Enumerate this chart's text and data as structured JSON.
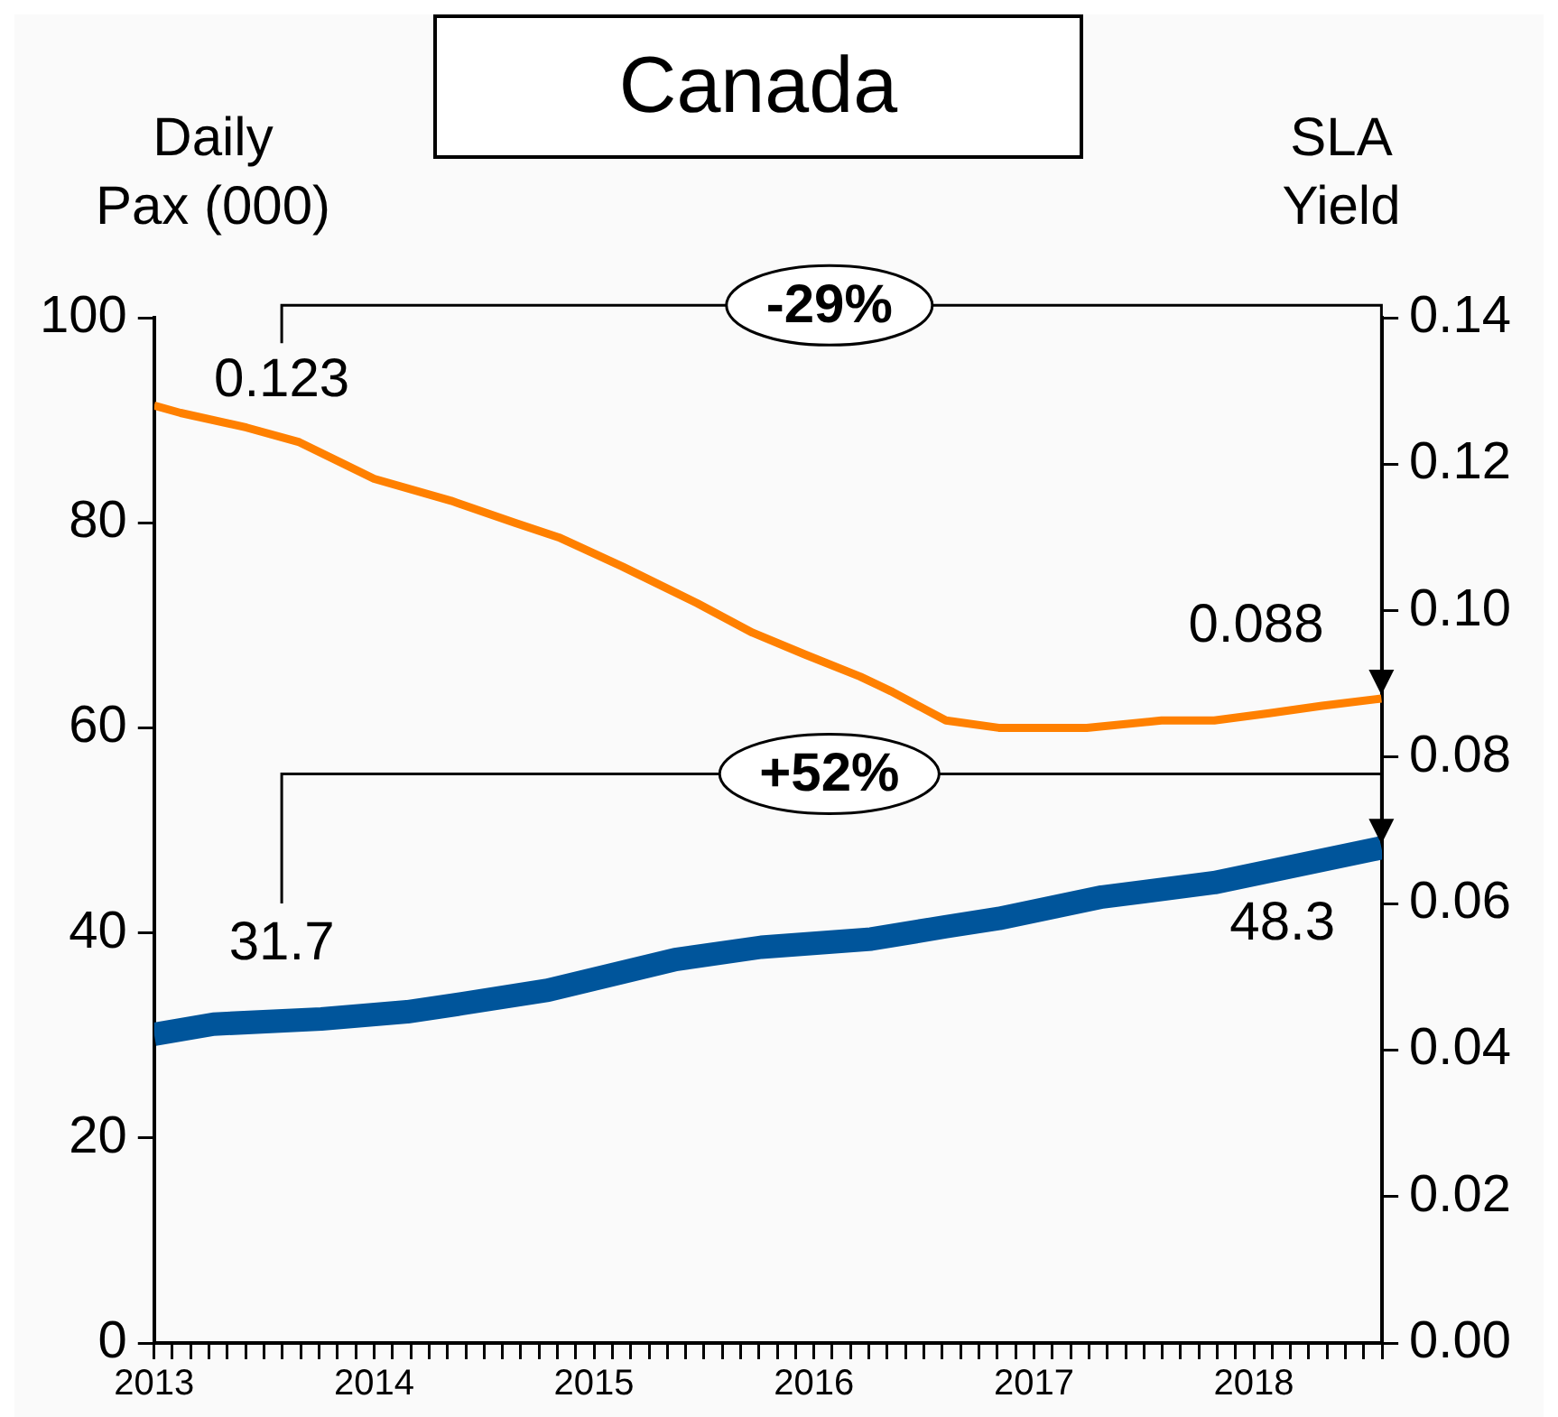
{
  "chart_data": {
    "type": "line",
    "title": "Canada",
    "ylabel": "Daily Pax (000)",
    "y2label": "SLA Yield",
    "xlim": [
      2013,
      2018.583
    ],
    "xticks": [
      2013,
      {
        "value": 2013.083,
        "label": null
      },
      {
        "value": 2013.167,
        "label": null
      },
      {
        "value": 2013.25,
        "label": null
      },
      {
        "value": 2013.333,
        "label": null
      },
      {
        "value": 2013.417,
        "label": null
      },
      {
        "value": 2013.5,
        "label": null
      },
      {
        "value": 2013.583,
        "label": null
      },
      {
        "value": 2013.667,
        "label": null
      },
      {
        "value": 2013.75,
        "label": null
      },
      {
        "value": 2013.833,
        "label": null
      },
      {
        "value": 2013.917,
        "label": null
      },
      2014,
      {
        "value": 2014.083,
        "label": null
      },
      {
        "value": 2014.167,
        "label": null
      },
      {
        "value": 2014.25,
        "label": null
      },
      {
        "value": 2014.333,
        "label": null
      },
      {
        "value": 2014.417,
        "label": null
      },
      {
        "value": 2014.5,
        "label": null
      },
      {
        "value": 2014.583,
        "label": null
      },
      {
        "value": 2014.667,
        "label": null
      },
      {
        "value": 2014.75,
        "label": null
      },
      {
        "value": 2014.833,
        "label": null
      },
      {
        "value": 2014.917,
        "label": null
      },
      2015,
      {
        "value": 2015.083,
        "label": null
      },
      {
        "value": 2015.167,
        "label": null
      },
      {
        "value": 2015.25,
        "label": null
      },
      {
        "value": 2015.333,
        "label": null
      },
      {
        "value": 2015.417,
        "label": null
      },
      {
        "value": 2015.5,
        "label": null
      },
      {
        "value": 2015.583,
        "label": null
      },
      {
        "value": 2015.667,
        "label": null
      },
      {
        "value": 2015.75,
        "label": null
      },
      {
        "value": 2015.833,
        "label": null
      },
      {
        "value": 2015.917,
        "label": null
      },
      2016,
      {
        "value": 2016.083,
        "label": null
      },
      {
        "value": 2016.167,
        "label": null
      },
      {
        "value": 2016.25,
        "label": null
      },
      {
        "value": 2016.333,
        "label": null
      },
      {
        "value": 2016.417,
        "label": null
      },
      {
        "value": 2016.5,
        "label": null
      },
      {
        "value": 2016.583,
        "label": null
      },
      {
        "value": 2016.667,
        "label": null
      },
      {
        "value": 2016.75,
        "label": null
      },
      {
        "value": 2016.833,
        "label": null
      },
      {
        "value": 2016.917,
        "label": null
      },
      2017,
      {
        "value": 2017.083,
        "label": null
      },
      {
        "value": 2017.167,
        "label": null
      },
      {
        "value": 2017.25,
        "label": null
      },
      {
        "value": 2017.333,
        "label": null
      },
      {
        "value": 2017.417,
        "label": null
      },
      {
        "value": 2017.5,
        "label": null
      },
      {
        "value": 2017.583,
        "label": null
      },
      {
        "value": 2017.667,
        "label": null
      },
      {
        "value": 2017.75,
        "label": null
      },
      {
        "value": 2017.833,
        "label": null
      },
      {
        "value": 2017.917,
        "label": null
      },
      2018,
      {
        "value": 2018.083,
        "label": null
      },
      {
        "value": 2018.167,
        "label": null
      },
      {
        "value": 2018.25,
        "label": null
      },
      {
        "value": 2018.333,
        "label": null
      },
      {
        "value": 2018.417,
        "label": null
      },
      {
        "value": 2018.5,
        "label": null
      },
      {
        "value": 2018.583,
        "label": null
      }
    ],
    "ylim": [
      0,
      100
    ],
    "yticks": [
      0,
      20,
      40,
      60,
      80,
      100
    ],
    "y2lim": [
      0,
      0.14
    ],
    "y2ticks": [
      {
        "value": 0,
        "label": "0.00"
      },
      {
        "value": 0.02,
        "label": "0.02"
      },
      {
        "value": 0.04,
        "label": "0.04"
      },
      {
        "value": 0.06,
        "label": "0.06"
      },
      {
        "value": 0.08,
        "label": "0.08"
      },
      {
        "value": 0.1,
        "label": "0.10"
      },
      {
        "value": 0.12,
        "label": "0.12"
      },
      {
        "value": 0.14,
        "label": "0.14"
      }
    ],
    "grid": false,
    "legend": false,
    "series": [
      {
        "color": "#00559b",
        "x": [
          2013,
          2013.27,
          2013.76,
          2014.15,
          2014.4,
          2014.79,
          2015.37,
          2015.76,
          2016.26,
          2016.6,
          2016.84,
          2017.31,
          2017.82,
          2018.58
        ],
        "values": [
          30.1,
          31.1,
          31.6,
          32.3,
          33.1,
          34.4,
          37.4,
          38.6,
          39.4,
          40.6,
          41.4,
          43.5,
          44.9,
          48.3
        ]
      },
      {
        "color": "#ff8000",
        "axis": "y2",
        "x": [
          2013,
          2013.12,
          2013.42,
          2013.66,
          2014.0,
          2014.35,
          2014.64,
          2014.84,
          2015.13,
          2015.47,
          2015.72,
          2015.96,
          2016.21,
          2016.35,
          2016.6,
          2016.84,
          2017.04,
          2017.24,
          2017.58,
          2017.82,
          2018.07,
          2018.31,
          2018.58
        ],
        "values": [
          0.128,
          0.127,
          0.125,
          0.123,
          0.118,
          0.115,
          0.112,
          0.11,
          0.106,
          0.101,
          0.097,
          0.094,
          0.091,
          0.089,
          0.085,
          0.084,
          0.084,
          0.084,
          0.085,
          0.085,
          0.086,
          0.087,
          0.088
        ]
      }
    ],
    "annotations": [
      "0.123",
      "0.088",
      "31.7",
      "48.3",
      "-29%",
      "+52%"
    ]
  }
}
